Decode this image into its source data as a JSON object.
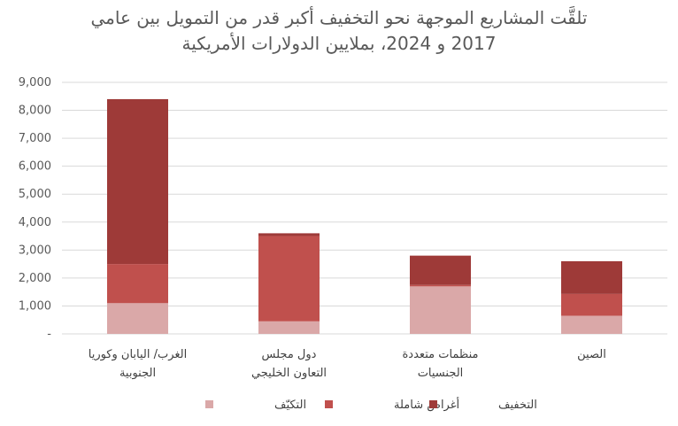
{
  "chart_data": {
    "type": "bar",
    "stacked": true,
    "title_lines": [
      "تلقَّت المشاريع الموجهة نحو التخفيف أكبر قدر من التمويل بين عامي",
      "2017 و 2024، بملايين الدولارات الأمريكية"
    ],
    "categories": [
      [
        "الغرب/ اليابان وكوريا",
        "الجنوبية"
      ],
      [
        "دول مجلس",
        "التعاون الخليجي"
      ],
      [
        "منظمات متعددة",
        "الجنسيات"
      ],
      [
        "الصين"
      ]
    ],
    "series": [
      {
        "name": "التكيّف",
        "color": "#DAA8A8",
        "values": [
          1100,
          450,
          1700,
          650
        ]
      },
      {
        "name": "أغراض شاملة",
        "color": "#C0504D",
        "values": [
          1400,
          3050,
          50,
          780
        ]
      },
      {
        "name": "التخفيف",
        "color": "#9E3A38",
        "values": [
          5900,
          100,
          1050,
          1170
        ]
      }
    ],
    "ylim": [
      0,
      9000
    ],
    "yticks": [
      "-",
      "1,000",
      "2,000",
      "3,000",
      "4,000",
      "5,000",
      "6,000",
      "7,000",
      "8,000",
      "9,000"
    ],
    "xlabel": "",
    "ylabel": "",
    "grid": true,
    "legend_position": "bottom"
  }
}
